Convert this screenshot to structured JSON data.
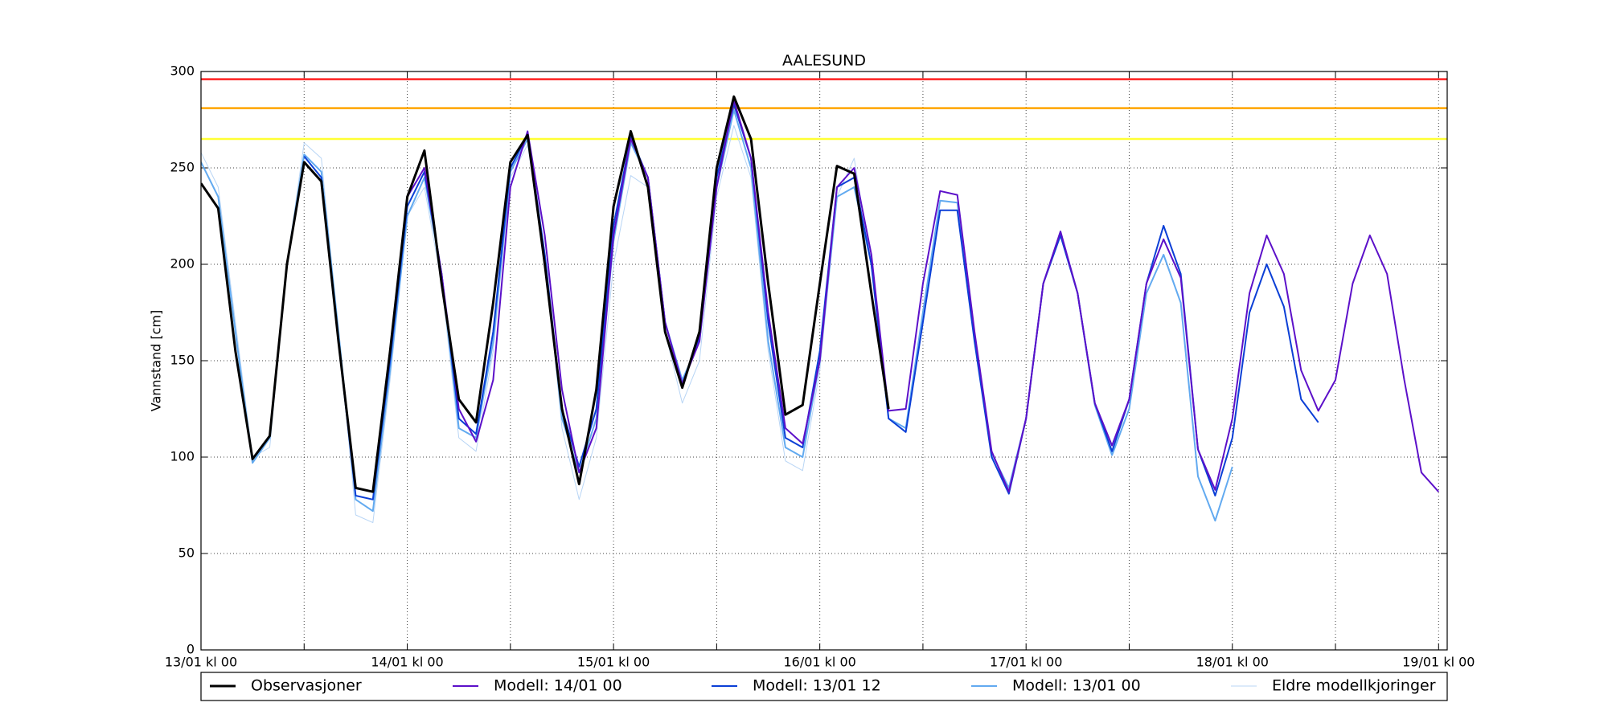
{
  "chart_data": {
    "type": "line",
    "title": "AALESUND",
    "ylabel": "Vannstand [cm]",
    "x": [
      0,
      2,
      4,
      6,
      8,
      10,
      12,
      14,
      16,
      18,
      20,
      22,
      24,
      26,
      28,
      30,
      32,
      34,
      36,
      38,
      40,
      42,
      44,
      46,
      48,
      50,
      52,
      54,
      56,
      58,
      60,
      62,
      64,
      66,
      68,
      70,
      72,
      74,
      76,
      78,
      80,
      82,
      84,
      86,
      88,
      90,
      92,
      94,
      96,
      98,
      100,
      102,
      104,
      106,
      108,
      110,
      112,
      114,
      116,
      118,
      120,
      122,
      124,
      126,
      128,
      130,
      132,
      134,
      136,
      138,
      140,
      142,
      144
    ],
    "xlim": [
      0,
      145
    ],
    "xticks": [
      {
        "value": 0,
        "label": "13/01 kl 00"
      },
      {
        "value": 24,
        "label": "14/01 kl 00"
      },
      {
        "value": 48,
        "label": "15/01 kl 00"
      },
      {
        "value": 72,
        "label": "16/01 kl 00"
      },
      {
        "value": 96,
        "label": "17/01 kl 00"
      },
      {
        "value": 120,
        "label": "18/01 kl 00"
      },
      {
        "value": 144,
        "label": "19/01 kl 00"
      }
    ],
    "xminorticks": [
      12,
      36,
      60,
      84,
      108,
      132
    ],
    "ylim": [
      0,
      300
    ],
    "yticks": [
      0,
      50,
      100,
      150,
      200,
      250,
      300
    ],
    "grid": true,
    "hlines": [
      {
        "value": 296,
        "color": "#ff2020"
      },
      {
        "value": 281,
        "color": "#ffa500"
      },
      {
        "value": 265,
        "color": "#ffff33"
      }
    ],
    "series": [
      {
        "name": "Eldre modellkjoringer",
        "color": "#b8d5f5",
        "width": 1,
        "values": [
          258,
          240,
          170,
          100,
          105,
          200,
          263,
          255,
          165,
          70,
          66,
          140,
          225,
          240,
          190,
          110,
          103,
          155,
          245,
          262,
          205,
          115,
          78,
          110,
          200,
          246,
          240,
          165,
          128,
          150,
          235,
          272,
          245,
          155,
          98,
          93,
          145,
          235,
          255,
          200,
          120,
          null,
          null,
          null,
          null,
          null,
          null,
          null,
          null,
          null,
          null,
          null,
          null,
          null,
          null,
          null,
          null,
          null,
          null,
          null,
          null,
          null,
          null,
          null,
          null,
          null,
          null,
          null,
          null,
          null,
          null,
          null,
          null
        ]
      },
      {
        "name": "Modell: 13/01 00",
        "color": "#62aaf0",
        "width": 2,
        "values": [
          253,
          235,
          165,
          97,
          110,
          200,
          257,
          248,
          165,
          78,
          72,
          145,
          225,
          245,
          195,
          115,
          110,
          160,
          248,
          265,
          205,
          120,
          92,
          120,
          212,
          263,
          245,
          170,
          140,
          160,
          240,
          280,
          250,
          160,
          105,
          100,
          150,
          235,
          240,
          200,
          120,
          115,
          175,
          233,
          232,
          162,
          102,
          84,
          120,
          190,
          217,
          185,
          127,
          101,
          125,
          185,
          205,
          180,
          90,
          67,
          95,
          null,
          null,
          null,
          null,
          null,
          null,
          null,
          null,
          null,
          null,
          null,
          null
        ]
      },
      {
        "name": "Modell: 13/01 12",
        "color": "#0b3fd6",
        "width": 2,
        "values": [
          null,
          null,
          null,
          null,
          null,
          null,
          256,
          245,
          160,
          80,
          78,
          150,
          230,
          248,
          195,
          120,
          112,
          165,
          250,
          267,
          205,
          125,
          95,
          125,
          220,
          266,
          245,
          170,
          138,
          162,
          245,
          283,
          255,
          170,
          110,
          105,
          155,
          240,
          245,
          200,
          120,
          113,
          170,
          228,
          228,
          160,
          100,
          81,
          120,
          190,
          215,
          185,
          128,
          103,
          130,
          190,
          220,
          195,
          104,
          80,
          110,
          175,
          200,
          178,
          130,
          118,
          null,
          null,
          null,
          null,
          null,
          null,
          null
        ]
      },
      {
        "name": "Modell: 14/01 00",
        "color": "#5c10c9",
        "width": 2,
        "values": [
          null,
          null,
          null,
          null,
          null,
          null,
          null,
          null,
          null,
          null,
          null,
          null,
          235,
          250,
          195,
          125,
          108,
          140,
          240,
          269,
          215,
          135,
          92,
          115,
          215,
          265,
          245,
          170,
          138,
          160,
          240,
          285,
          255,
          175,
          115,
          107,
          150,
          240,
          250,
          205,
          124,
          125,
          190,
          238,
          236,
          165,
          103,
          82,
          120,
          190,
          217,
          185,
          128,
          106,
          130,
          190,
          213,
          193,
          104,
          83,
          120,
          185,
          215,
          195,
          145,
          124,
          140,
          190,
          215,
          195,
          140,
          92,
          82
        ]
      },
      {
        "name": "Observasjoner",
        "color": "#000000",
        "width": 3,
        "values": [
          242,
          229,
          155,
          99,
          111,
          200,
          253,
          243,
          160,
          84,
          82,
          155,
          235,
          259,
          190,
          130,
          118,
          180,
          253,
          267,
          200,
          125,
          86,
          135,
          230,
          269,
          240,
          165,
          136,
          165,
          250,
          287,
          265,
          190,
          122,
          127,
          190,
          251,
          247,
          185,
          125,
          null,
          null,
          null,
          null,
          null,
          null,
          null,
          null,
          null,
          null,
          null,
          null,
          null,
          null,
          null,
          null,
          null,
          null,
          null,
          null,
          null,
          null,
          null,
          null,
          null,
          null,
          null,
          null,
          null,
          null,
          null,
          null
        ]
      }
    ],
    "legend_order": [
      4,
      3,
      2,
      1,
      0
    ],
    "legend": "bottom"
  }
}
